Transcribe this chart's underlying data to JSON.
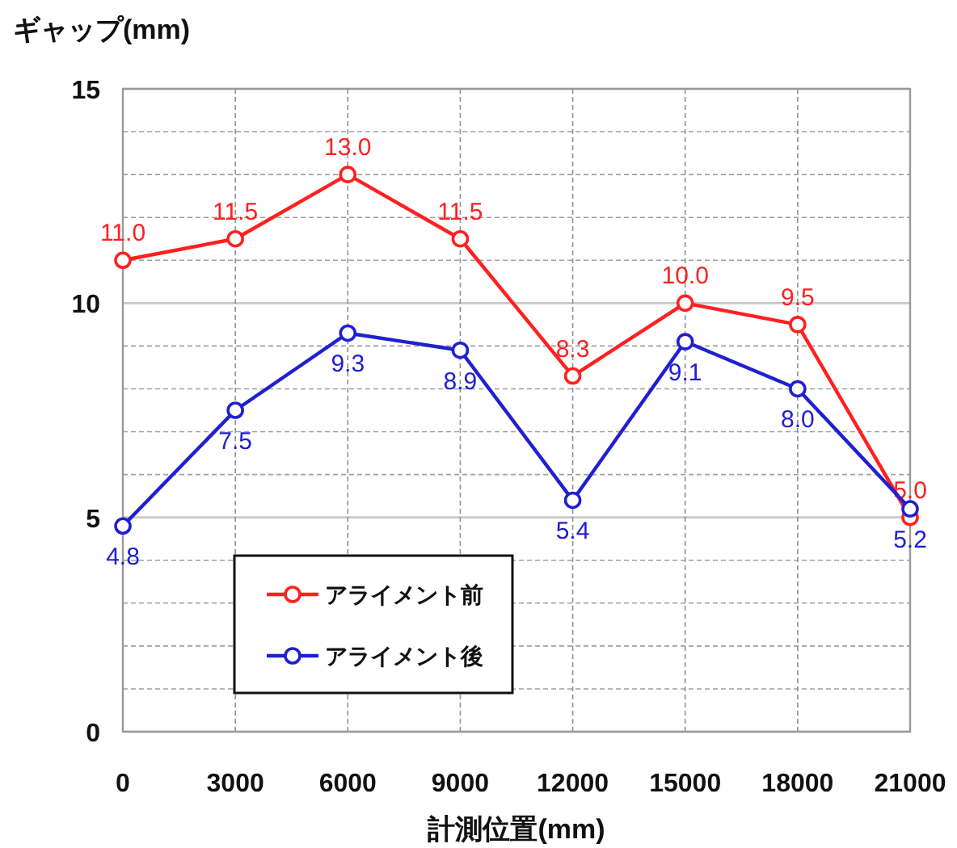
{
  "chart_data": {
    "type": "line",
    "ylabel": "ギャップ(mm)",
    "xlabel": "計測位置(mm)",
    "x": [
      0,
      3000,
      6000,
      9000,
      12000,
      15000,
      18000,
      21000
    ],
    "series": [
      {
        "name": "アライメント前",
        "color": "#ff2020",
        "values": [
          11.0,
          11.5,
          13.0,
          11.5,
          8.3,
          10.0,
          9.5,
          5.0
        ],
        "value_labels": [
          "11.0",
          "11.5",
          "13.0",
          "11.5",
          "8.3",
          "10.0",
          "9.5",
          "5.0"
        ]
      },
      {
        "name": "アライメント後",
        "color": "#2020d0",
        "values": [
          4.8,
          7.5,
          9.3,
          8.9,
          5.4,
          9.1,
          8.0,
          5.2
        ],
        "value_labels": [
          "4.8",
          "7.5",
          "9.3",
          "8.9",
          "5.4",
          "9.1",
          "8.0",
          "5.2"
        ]
      }
    ],
    "xlim": [
      0,
      21000
    ],
    "xticks": [
      0,
      3000,
      6000,
      9000,
      12000,
      15000,
      18000,
      21000
    ],
    "ylim": [
      0,
      15
    ],
    "yticks": [
      0,
      {
        "value": 1,
        "label": null
      },
      {
        "value": 2,
        "label": null
      },
      {
        "value": 3,
        "label": null
      },
      {
        "value": 4,
        "label": null
      },
      5,
      {
        "value": 6,
        "label": null
      },
      {
        "value": 7,
        "label": null
      },
      {
        "value": 8,
        "label": null
      },
      {
        "value": 9,
        "label": null
      },
      10,
      {
        "value": 11,
        "label": null
      },
      {
        "value": 12,
        "label": null
      },
      {
        "value": 13,
        "label": null
      },
      {
        "value": 14,
        "label": null
      },
      15
    ],
    "grid": true,
    "legend": "bottom left",
    "marker": "circle",
    "line_style": "solid"
  }
}
